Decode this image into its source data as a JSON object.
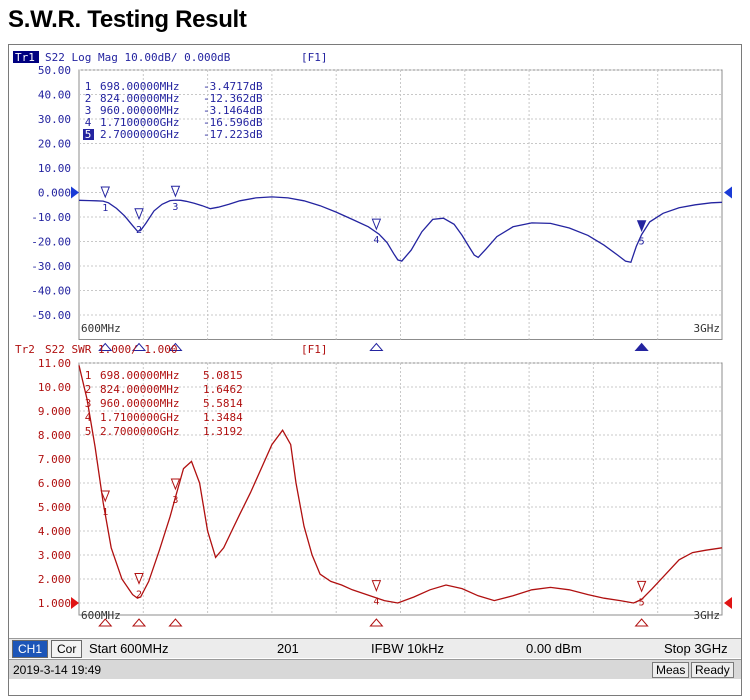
{
  "page_title": "S.W.R. Testing Result",
  "chart_data": [
    {
      "type": "line",
      "trace_label": "Tr1",
      "header": "S22 Log Mag 10.00dB/ 0.000dB",
      "channel_tag": "[F1]",
      "ylim": [
        -60,
        50
      ],
      "y_ticks": [
        "50.00",
        "40.00",
        "30.00",
        "20.00",
        "10.00",
        "0.000",
        "-10.00",
        "-20.00",
        "-30.00",
        "-40.00",
        "-50.00"
      ],
      "x_range_mhz": [
        600,
        3000
      ],
      "x_start_label": "600MHz",
      "x_stop_label": "3GHz",
      "line_color": "#2424a0",
      "x": [
        600,
        640,
        665,
        690,
        710,
        740,
        770,
        800,
        818,
        830,
        850,
        880,
        910,
        940,
        960,
        980,
        1000,
        1030,
        1060,
        1090,
        1120,
        1160,
        1200,
        1260,
        1320,
        1380,
        1440,
        1500,
        1560,
        1620,
        1680,
        1720,
        1750,
        1775,
        1790,
        1805,
        1840,
        1880,
        1920,
        1960,
        2000,
        2030,
        2055,
        2075,
        2090,
        2120,
        2160,
        2220,
        2290,
        2360,
        2430,
        2500,
        2560,
        2610,
        2640,
        2660,
        2680,
        2700,
        2730,
        2780,
        2840,
        2900,
        2960,
        3000
      ],
      "y": [
        -3.2,
        -3.3,
        -3.4,
        -3.5,
        -4.2,
        -6.5,
        -9.5,
        -13.5,
        -15.8,
        -15.5,
        -12.5,
        -7.5,
        -4.8,
        -3.3,
        -3.1,
        -3.2,
        -3.6,
        -4.4,
        -5.4,
        -6.6,
        -6.0,
        -4.8,
        -3.4,
        -2.2,
        -1.8,
        -2.2,
        -3.4,
        -5.4,
        -8.0,
        -11.0,
        -14.0,
        -17.0,
        -20.5,
        -25.0,
        -27.5,
        -28.0,
        -23.5,
        -16.0,
        -11.0,
        -10.5,
        -13.0,
        -17.5,
        -22.0,
        -25.5,
        -26.5,
        -23.0,
        -18.0,
        -14.0,
        -12.4,
        -12.6,
        -14.5,
        -17.5,
        -21.5,
        -25.5,
        -28.0,
        -28.5,
        -22.0,
        -17.2,
        -12.0,
        -8.5,
        -6.2,
        -5.0,
        -4.2,
        -4.0
      ],
      "markers": [
        {
          "label": "1",
          "freq": "698.00000MHz",
          "value": "-3.4717dB",
          "x": 698,
          "y": -3.4717
        },
        {
          "label": "2",
          "freq": "824.00000MHz",
          "value": "-12.362dB",
          "x": 824,
          "y": -12.362
        },
        {
          "label": "3",
          "freq": "960.00000MHz",
          "value": "-3.1464dB",
          "x": 960,
          "y": -3.1464
        },
        {
          "label": "4",
          "freq": "1.7100000GHz",
          "value": "-16.596dB",
          "x": 1710,
          "y": -16.596
        },
        {
          "label": "5",
          "freq": "2.7000000GHz",
          "value": "-17.223dB",
          "x": 2700,
          "y": -17.223
        }
      ],
      "active_marker": "5"
    },
    {
      "type": "line",
      "trace_label": "Tr2",
      "header": "S22 SWR 1.000/ 1.000",
      "channel_tag": "[F1]",
      "ylim": [
        0.5,
        11
      ],
      "y_ticks": [
        "11.00",
        "10.00",
        "9.000",
        "8.000",
        "7.000",
        "6.000",
        "5.000",
        "4.000",
        "3.000",
        "2.000",
        "1.000"
      ],
      "x_range_mhz": [
        600,
        3000
      ],
      "x_start_label": "600MHz",
      "x_stop_label": "3GHz",
      "line_color": "#b01010",
      "x": [
        600,
        630,
        660,
        690,
        720,
        760,
        800,
        818,
        830,
        860,
        900,
        940,
        960,
        990,
        1020,
        1050,
        1080,
        1110,
        1140,
        1170,
        1200,
        1240,
        1280,
        1320,
        1360,
        1390,
        1410,
        1440,
        1470,
        1500,
        1540,
        1580,
        1620,
        1660,
        1700,
        1740,
        1790,
        1850,
        1910,
        1970,
        2030,
        2090,
        2150,
        2220,
        2290,
        2360,
        2430,
        2500,
        2560,
        2620,
        2670,
        2700,
        2740,
        2790,
        2840,
        2890,
        2940,
        3000
      ],
      "y": [
        10.9,
        9.5,
        7.5,
        5.2,
        3.3,
        2.0,
        1.35,
        1.2,
        1.25,
        1.9,
        3.2,
        4.6,
        5.4,
        6.6,
        6.9,
        6.0,
        4.0,
        2.9,
        3.3,
        4.0,
        4.7,
        5.6,
        6.6,
        7.6,
        8.2,
        7.6,
        6.0,
        4.2,
        3.0,
        2.2,
        1.9,
        1.75,
        1.55,
        1.4,
        1.25,
        1.1,
        1.0,
        1.25,
        1.55,
        1.75,
        1.6,
        1.3,
        1.1,
        1.3,
        1.55,
        1.65,
        1.55,
        1.35,
        1.2,
        1.1,
        1.0,
        1.15,
        1.6,
        2.2,
        2.8,
        3.1,
        3.2,
        3.3
      ],
      "markers": [
        {
          "label": "1",
          "freq": "698.00000MHz",
          "value": "5.0815",
          "x": 698,
          "y": 5.0815
        },
        {
          "label": "2",
          "freq": "824.00000MHz",
          "value": "1.6462",
          "x": 824,
          "y": 1.6462
        },
        {
          "label": "3",
          "freq": "960.00000MHz",
          "value": "5.5814",
          "x": 960,
          "y": 5.5814
        },
        {
          "label": "4",
          "freq": "1.7100000GHz",
          "value": "1.3484",
          "x": 1710,
          "y": 1.3484
        },
        {
          "label": "5",
          "freq": "2.7000000GHz",
          "value": "1.3192",
          "x": 2700,
          "y": 1.3192
        }
      ],
      "active_marker": ""
    }
  ],
  "status": {
    "ch1": "CH1",
    "cor": "Cor",
    "start": "Start 600MHz",
    "points": "201",
    "ifbw": "IFBW 10kHz",
    "power": "0.00 dBm",
    "stop": "Stop 3GHz",
    "timestamp": "2019-3-14 19:49",
    "meas": "Meas",
    "ready": "Ready"
  }
}
